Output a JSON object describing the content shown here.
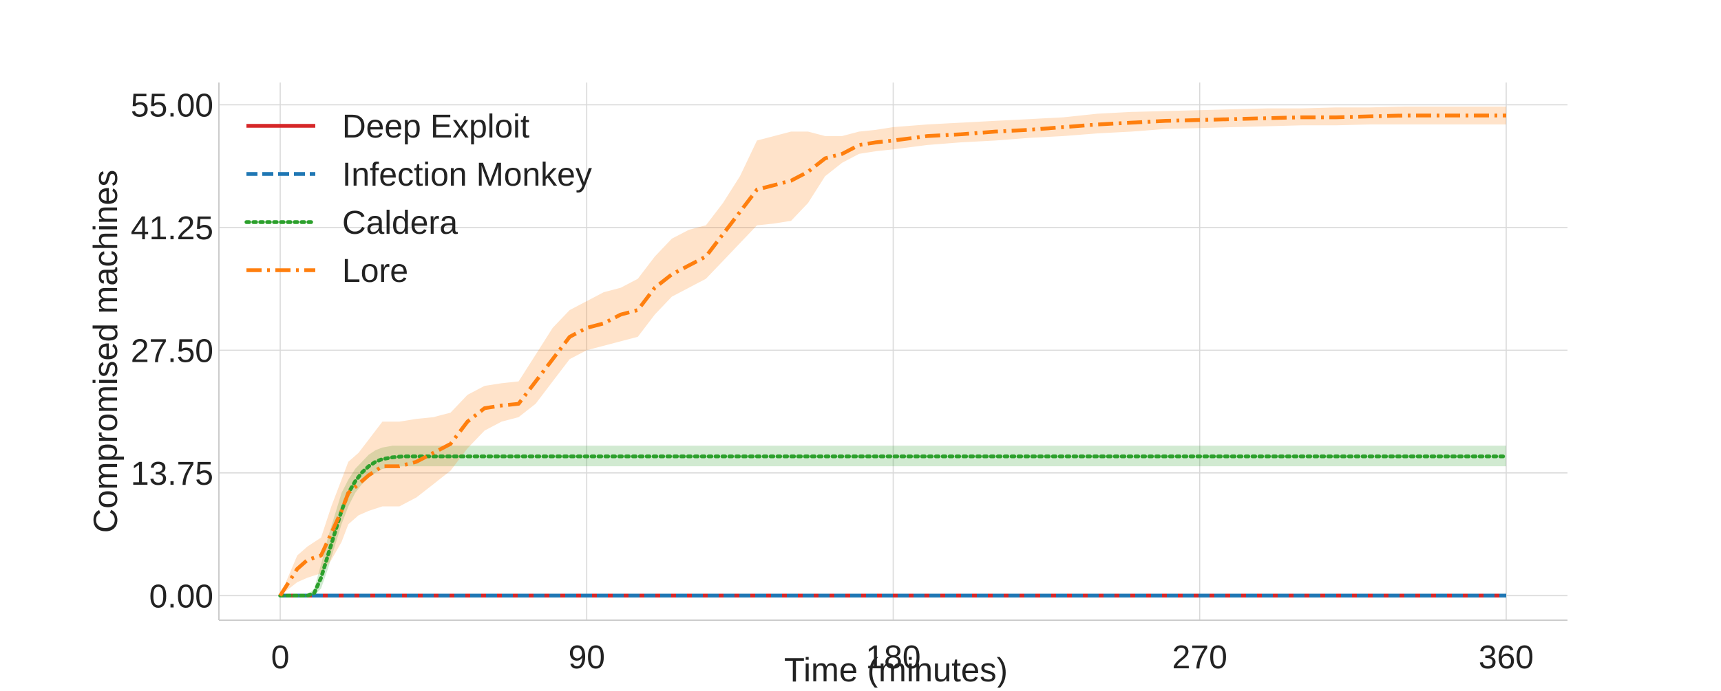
{
  "chart_data": {
    "type": "line",
    "title": "",
    "xlabel": "Time (minutes)",
    "ylabel": "Compromised machines",
    "xlim": [
      -18,
      378
    ],
    "ylim": [
      -2.75,
      57.5
    ],
    "xticks": [
      0,
      90,
      180,
      270,
      360
    ],
    "xtick_labels": [
      "0",
      "90",
      "180",
      "270",
      "360"
    ],
    "yticks": [
      0,
      13.75,
      27.5,
      41.25,
      55
    ],
    "ytick_labels": [
      "0.00",
      "13.75",
      "27.50",
      "41.25",
      "55.00"
    ],
    "grid": true,
    "legend_position": "top-left",
    "series": [
      {
        "name": "Deep Exploit",
        "color": "#d62728",
        "dash": "solid",
        "x": [
          0,
          360
        ],
        "y": [
          0,
          0
        ]
      },
      {
        "name": "Infection Monkey",
        "color": "#1f77b4",
        "dash": "dashed",
        "x": [
          0,
          360
        ],
        "y": [
          0,
          0
        ]
      },
      {
        "name": "Caldera",
        "color": "#2ca02c",
        "dash": "dotted",
        "x": [
          0,
          5,
          8,
          10,
          12,
          14,
          16,
          18,
          20,
          22,
          24,
          26,
          28,
          30,
          33,
          36,
          40,
          45,
          50,
          60,
          360
        ],
        "y": [
          0,
          0,
          0,
          0.3,
          2.0,
          4.5,
          7.0,
          9.5,
          11.5,
          12.8,
          13.8,
          14.5,
          15.0,
          15.3,
          15.5,
          15.6,
          15.6,
          15.6,
          15.6,
          15.6,
          15.6
        ],
        "band_lower": [
          0,
          0,
          0,
          0,
          0.8,
          3.0,
          5.5,
          8.0,
          10.0,
          11.5,
          12.5,
          13.2,
          13.8,
          14.2,
          14.4,
          14.5,
          14.5,
          14.5,
          14.5,
          14.5,
          14.5
        ],
        "band_upper": [
          0,
          0,
          0,
          0.8,
          3.5,
          6.5,
          9.0,
          11.5,
          13.0,
          14.2,
          15.0,
          15.8,
          16.3,
          16.6,
          16.8,
          16.8,
          16.8,
          16.8,
          16.8,
          16.8,
          16.8
        ]
      },
      {
        "name": "Lore",
        "color": "#ff7f0e",
        "dash": "dashdot",
        "x": [
          0,
          5,
          8,
          12,
          15,
          18,
          20,
          23,
          26,
          30,
          35,
          40,
          45,
          50,
          55,
          60,
          65,
          70,
          75,
          80,
          85,
          90,
          95,
          100,
          105,
          110,
          115,
          120,
          125,
          130,
          135,
          140,
          145,
          150,
          155,
          160,
          165,
          170,
          175,
          180,
          190,
          200,
          210,
          220,
          230,
          240,
          250,
          260,
          270,
          280,
          290,
          300,
          310,
          320,
          330,
          340,
          350,
          360
        ],
        "y": [
          0,
          3.0,
          4.0,
          4.5,
          7.0,
          9.5,
          11.5,
          12.5,
          13.5,
          14.5,
          14.5,
          15.0,
          16.0,
          17.0,
          19.5,
          21.0,
          21.3,
          21.5,
          24.0,
          26.5,
          29.0,
          30.0,
          30.5,
          31.5,
          32.0,
          34.5,
          36.0,
          37.0,
          38.0,
          40.5,
          43.0,
          45.5,
          46.0,
          46.5,
          47.5,
          49.0,
          49.5,
          50.5,
          50.8,
          51.0,
          51.5,
          51.7,
          52.0,
          52.2,
          52.5,
          52.8,
          53.0,
          53.2,
          53.3,
          53.4,
          53.5,
          53.6,
          53.6,
          53.7,
          53.8,
          53.8,
          53.8,
          53.8
        ],
        "band_lower": [
          0,
          1.5,
          2.0,
          2.5,
          4.0,
          6.0,
          8.0,
          9.0,
          9.5,
          10.0,
          10.0,
          11.0,
          12.5,
          14.0,
          16.5,
          18.5,
          19.5,
          20.0,
          21.5,
          24.0,
          26.5,
          27.5,
          28.0,
          28.5,
          29.0,
          31.5,
          33.5,
          34.5,
          35.5,
          37.5,
          39.5,
          41.5,
          41.7,
          42.0,
          44.0,
          47.0,
          48.5,
          49.5,
          49.8,
          50.0,
          50.5,
          50.8,
          51.0,
          51.3,
          51.5,
          51.8,
          52.0,
          52.3,
          52.4,
          52.5,
          52.6,
          52.7,
          52.7,
          52.8,
          52.8,
          52.8,
          52.8,
          52.8
        ],
        "band_upper": [
          0,
          4.5,
          5.5,
          6.5,
          10.0,
          13.0,
          15.0,
          16.0,
          17.5,
          19.5,
          19.5,
          19.8,
          20.0,
          20.5,
          22.5,
          23.5,
          23.8,
          24.0,
          27.0,
          30.0,
          32.0,
          33.0,
          34.0,
          34.5,
          35.5,
          38.0,
          40.0,
          41.0,
          41.5,
          44.0,
          47.0,
          51.0,
          51.5,
          52.0,
          52.0,
          51.5,
          51.5,
          52.0,
          52.2,
          52.5,
          52.8,
          53.0,
          53.2,
          53.4,
          53.6,
          54.0,
          54.2,
          54.3,
          54.4,
          54.5,
          54.6,
          54.6,
          54.7,
          54.7,
          54.8,
          54.8,
          54.8,
          54.8
        ]
      }
    ]
  }
}
